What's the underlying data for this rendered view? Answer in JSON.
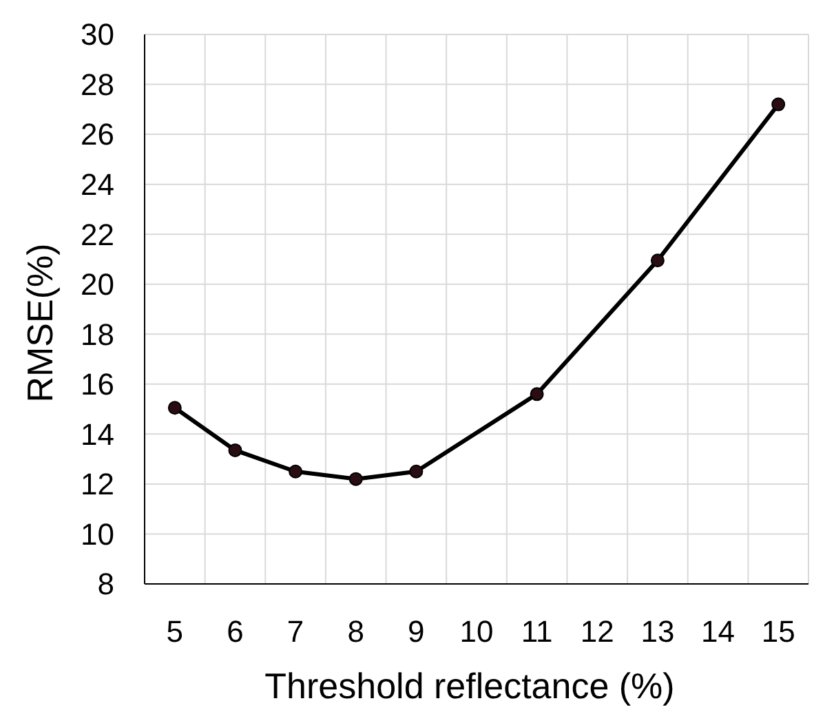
{
  "chart_data": {
    "type": "line",
    "xlabel": "Threshold reflectance (%)",
    "ylabel": "RMSE(%)",
    "x": [
      5,
      6,
      7,
      8,
      9,
      11,
      13,
      15
    ],
    "series": [
      {
        "color": "#000000",
        "values": [
          15.05,
          13.35,
          12.5,
          12.2,
          12.5,
          15.6,
          20.95,
          27.2
        ]
      }
    ],
    "xlim": [
      4.5,
      15.5
    ],
    "xticks": [
      5,
      6,
      7,
      8,
      9,
      10,
      11,
      12,
      13,
      14,
      15
    ],
    "ylim": [
      8,
      30
    ],
    "yticks": [
      8,
      10,
      12,
      14,
      16,
      18,
      20,
      22,
      24,
      26,
      28,
      30
    ],
    "grid": true,
    "marker": "circle",
    "line_style": "solid"
  }
}
